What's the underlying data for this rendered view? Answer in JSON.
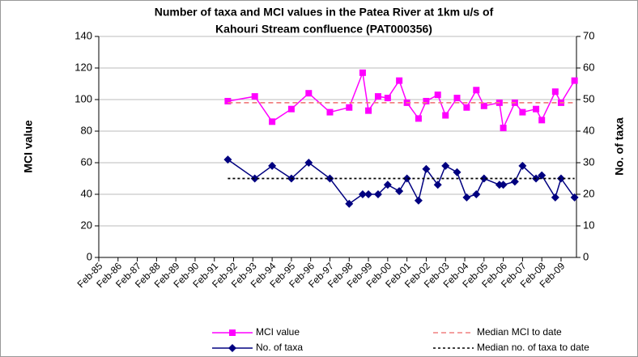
{
  "chart_data": {
    "type": "line",
    "title": [
      "Number of taxa and MCI values in the Patea River at 1km u/s of",
      "Kahouri Stream confluence (PAT000356)"
    ],
    "ylabel": "MCI value",
    "y2label": "No. of taxa",
    "x": [
      1991.8,
      1993.2,
      1994.1,
      1995.1,
      1996.0,
      1997.1,
      1998.1,
      1998.8,
      1999.1,
      1999.6,
      2000.1,
      2000.7,
      2001.1,
      2001.7,
      2002.1,
      2002.7,
      2003.1,
      2003.7,
      2004.2,
      2004.7,
      2005.1,
      2005.9,
      2006.1,
      2006.7,
      2007.1,
      2007.8,
      2008.1,
      2008.8,
      2009.1,
      2009.8
    ],
    "xlim": [
      1985.1,
      2009.9
    ],
    "xticks": [
      {
        "value": 1985.1,
        "label": "Feb-85"
      },
      {
        "value": 1986.1,
        "label": "Feb-86"
      },
      {
        "value": 1987.1,
        "label": "Feb-87"
      },
      {
        "value": 1988.1,
        "label": "Feb-88"
      },
      {
        "value": 1989.1,
        "label": "Feb-89"
      },
      {
        "value": 1990.1,
        "label": "Feb-90"
      },
      {
        "value": 1991.1,
        "label": "Feb-91"
      },
      {
        "value": 1992.1,
        "label": "Feb-92"
      },
      {
        "value": 1993.1,
        "label": "Feb-93"
      },
      {
        "value": 1994.1,
        "label": "Feb-94"
      },
      {
        "value": 1995.1,
        "label": "Feb-95"
      },
      {
        "value": 1996.1,
        "label": "Feb-96"
      },
      {
        "value": 1997.1,
        "label": "Feb-97"
      },
      {
        "value": 1998.1,
        "label": "Feb-98"
      },
      {
        "value": 1999.1,
        "label": "Feb-99"
      },
      {
        "value": 2000.1,
        "label": "Feb-00"
      },
      {
        "value": 2001.1,
        "label": "Feb-01"
      },
      {
        "value": 2002.1,
        "label": "Feb-02"
      },
      {
        "value": 2003.1,
        "label": "Feb-03"
      },
      {
        "value": 2004.1,
        "label": "Feb-04"
      },
      {
        "value": 2005.1,
        "label": "Feb-05"
      },
      {
        "value": 2006.1,
        "label": "Feb-06"
      },
      {
        "value": 2007.1,
        "label": "Feb-07"
      },
      {
        "value": 2008.1,
        "label": "Feb-08"
      },
      {
        "value": 2009.1,
        "label": "Feb-09"
      }
    ],
    "ylim": [
      0,
      140
    ],
    "yticks": [
      0,
      20,
      40,
      60,
      80,
      100,
      120,
      140
    ],
    "y2lim": [
      0,
      70
    ],
    "y2ticks": [
      0,
      10,
      20,
      30,
      40,
      50,
      60,
      70
    ],
    "grid": true,
    "legend": "bottom",
    "series": [
      {
        "name": "MCI value",
        "color": "#ff00ff",
        "marker": "square",
        "style": "solid",
        "values": [
          99,
          102,
          86,
          94,
          104,
          92,
          95,
          117,
          93,
          102,
          101,
          112,
          98,
          88,
          99,
          103,
          90,
          101,
          95,
          106,
          96,
          98,
          82,
          98,
          92,
          94,
          87,
          105,
          98,
          112
        ]
      },
      {
        "name": "Median MCI to date",
        "color": "#f08080",
        "marker": null,
        "style": "dashed",
        "values": [
          98,
          98,
          98,
          98,
          98,
          98,
          98,
          98,
          98,
          98,
          98,
          98,
          98,
          98,
          98,
          98,
          98,
          98,
          98,
          98,
          98,
          98,
          98,
          98,
          98,
          98,
          98,
          98,
          98,
          98
        ]
      },
      {
        "name": "No. of taxa",
        "color": "#000080",
        "marker": "diamond",
        "style": "solid",
        "axis": "y2",
        "values": [
          31,
          25,
          29,
          25,
          30,
          25,
          17,
          20,
          20,
          20,
          23,
          21,
          25,
          18,
          28,
          23,
          29,
          27,
          19,
          20,
          25,
          23,
          23,
          24,
          29,
          25,
          26,
          19,
          25,
          19
        ]
      },
      {
        "name": "Median no. of taxa to date",
        "color": "#000000",
        "marker": null,
        "style": "dotted",
        "axis": "y2",
        "values": [
          25,
          25,
          25,
          25,
          25,
          25,
          25,
          25,
          25,
          25,
          25,
          25,
          25,
          25,
          25,
          25,
          25,
          25,
          25,
          25,
          25,
          25,
          25,
          25,
          25,
          25,
          25,
          25,
          25,
          25
        ]
      }
    ]
  }
}
